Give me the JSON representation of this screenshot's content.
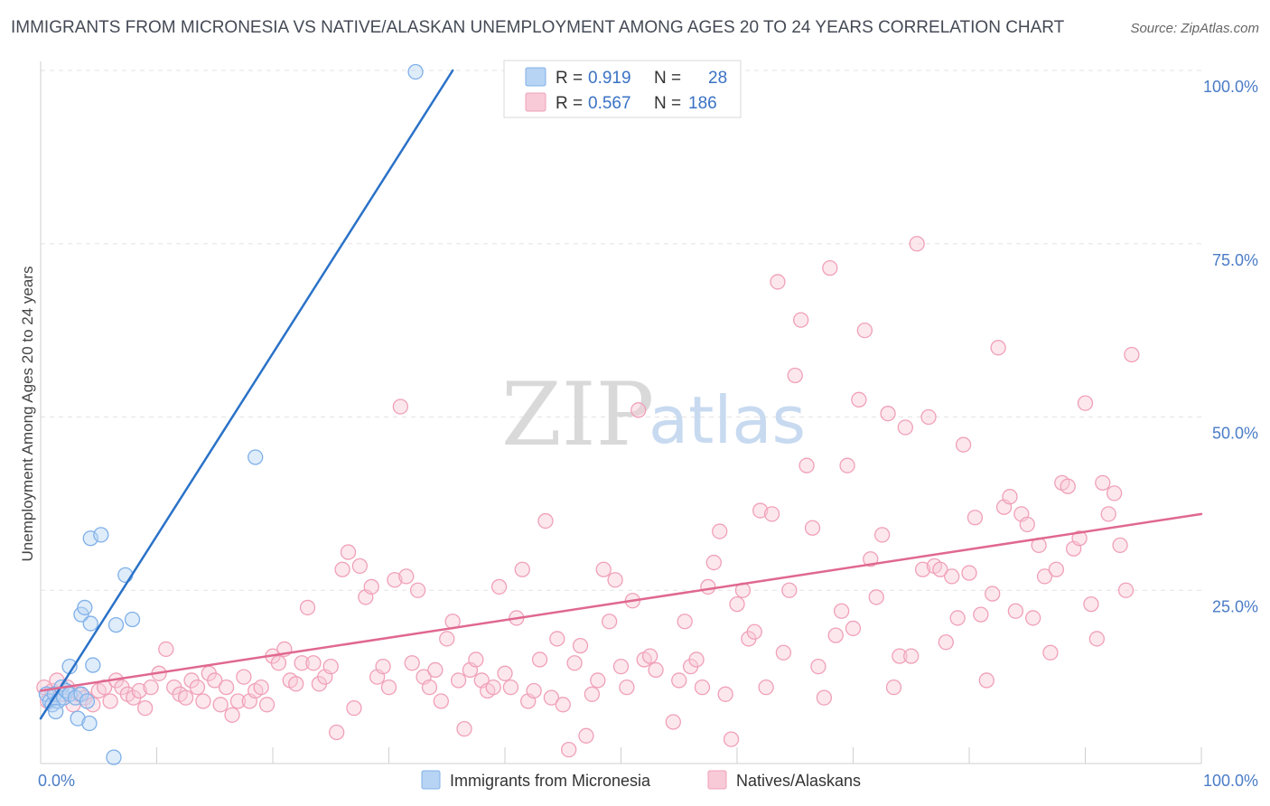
{
  "title": "IMMIGRANTS FROM MICRONESIA VS NATIVE/ALASKAN UNEMPLOYMENT AMONG AGES 20 TO 24 YEARS CORRELATION CHART",
  "source": "Source: ZipAtlas.com",
  "watermark": {
    "zip": "ZIP",
    "atlas": "atlas"
  },
  "chart_data": {
    "type": "scatter",
    "xlabel": "",
    "ylabel": "Unemployment Among Ages 20 to 24 years",
    "xlim": [
      0,
      100
    ],
    "ylim": [
      0,
      100
    ],
    "x_tick_labels": {
      "min": "0.0%",
      "max": "100.0%"
    },
    "y_ticks": [
      {
        "value": 25,
        "label": "25.0%"
      },
      {
        "value": 50,
        "label": "50.0%"
      },
      {
        "value": 75,
        "label": "75.0%"
      },
      {
        "value": 100,
        "label": "100.0%"
      }
    ],
    "legend": [
      {
        "r_label": "R =",
        "r_value": "0.919",
        "n_label": "N =",
        "n_value": "28"
      },
      {
        "r_label": "R =",
        "r_value": "0.567",
        "n_label": "N =",
        "n_value": "186"
      }
    ],
    "series": [
      {
        "name": "Immigrants from Micronesia",
        "color": "#7fb0e8",
        "fill": "#b8d4f4",
        "line_color": "#2a72c8",
        "trend": {
          "x": [
            0,
            35.5
          ],
          "y": [
            6.5,
            100
          ]
        },
        "points": [
          [
            0.5,
            10
          ],
          [
            0.8,
            9
          ],
          [
            1,
            8.5
          ],
          [
            1.2,
            10
          ],
          [
            1.5,
            9
          ],
          [
            1.8,
            11
          ],
          [
            2,
            9.5
          ],
          [
            2.2,
            10.5
          ],
          [
            2.5,
            10
          ],
          [
            3,
            9.5
          ],
          [
            1.3,
            7.5
          ],
          [
            2.5,
            14
          ],
          [
            3.2,
            6.5
          ],
          [
            3.5,
            10
          ],
          [
            4,
            9
          ],
          [
            3.5,
            21.5
          ],
          [
            4.5,
            14.2
          ],
          [
            3.8,
            22.5
          ],
          [
            4.2,
            5.8
          ],
          [
            4.3,
            32.5
          ],
          [
            5.2,
            33
          ],
          [
            4.3,
            20.2
          ],
          [
            6.5,
            20
          ],
          [
            7.3,
            27.2
          ],
          [
            7.9,
            20.8
          ],
          [
            6.3,
            0.9
          ],
          [
            18.5,
            44.2
          ],
          [
            32.3,
            99.8
          ]
        ]
      },
      {
        "name": "Natives/Alaskans",
        "color": "#f0a0b8",
        "fill": "#f8cad8",
        "line_color": "#e06890",
        "trend": {
          "x": [
            0,
            100
          ],
          "y": [
            10.5,
            36
          ]
        },
        "points": [
          [
            0.3,
            11
          ],
          [
            0.6,
            9
          ],
          [
            1,
            10.5
          ],
          [
            1.4,
            12
          ],
          [
            1.8,
            10
          ],
          [
            2.3,
            11
          ],
          [
            2.8,
            8.5
          ],
          [
            3.3,
            10
          ],
          [
            3.8,
            9.5
          ],
          [
            4.5,
            8.5
          ],
          [
            5,
            10.5
          ],
          [
            5.5,
            11
          ],
          [
            6,
            9
          ],
          [
            6.5,
            12
          ],
          [
            7,
            11
          ],
          [
            7.5,
            10
          ],
          [
            8,
            9.5
          ],
          [
            8.5,
            10.5
          ],
          [
            9,
            8
          ],
          [
            9.5,
            11
          ],
          [
            10.2,
            13
          ],
          [
            10.8,
            16.5
          ],
          [
            11.5,
            11
          ],
          [
            12,
            10
          ],
          [
            12.5,
            9.5
          ],
          [
            13,
            12
          ],
          [
            13.5,
            11
          ],
          [
            14,
            9
          ],
          [
            14.5,
            13
          ],
          [
            15,
            12
          ],
          [
            15.5,
            8.5
          ],
          [
            16,
            11
          ],
          [
            16.5,
            7
          ],
          [
            17,
            9
          ],
          [
            17.5,
            12.5
          ],
          [
            18,
            9
          ],
          [
            18.5,
            10.5
          ],
          [
            19,
            11
          ],
          [
            19.5,
            8.5
          ],
          [
            20,
            15.5
          ],
          [
            20.5,
            14.5
          ],
          [
            21,
            16.5
          ],
          [
            21.5,
            12
          ],
          [
            22,
            11.5
          ],
          [
            22.5,
            14.5
          ],
          [
            23,
            22.5
          ],
          [
            23.5,
            14.5
          ],
          [
            24,
            11.5
          ],
          [
            24.5,
            12.5
          ],
          [
            25,
            14
          ],
          [
            25.5,
            4.5
          ],
          [
            26,
            28
          ],
          [
            26.5,
            30.5
          ],
          [
            27,
            8
          ],
          [
            27.5,
            28.5
          ],
          [
            28,
            24
          ],
          [
            28.5,
            25.5
          ],
          [
            29,
            12.5
          ],
          [
            29.5,
            14
          ],
          [
            30,
            11
          ],
          [
            30.5,
            26.5
          ],
          [
            31,
            51.5
          ],
          [
            31.5,
            27
          ],
          [
            32,
            14.5
          ],
          [
            32.5,
            25
          ],
          [
            33,
            12.5
          ],
          [
            33.5,
            11
          ],
          [
            34,
            13.5
          ],
          [
            34.5,
            9
          ],
          [
            35,
            18
          ],
          [
            35.5,
            20.5
          ],
          [
            36,
            12
          ],
          [
            36.5,
            5
          ],
          [
            37,
            13.5
          ],
          [
            37.5,
            15
          ],
          [
            38,
            12
          ],
          [
            38.5,
            10.5
          ],
          [
            39,
            11
          ],
          [
            39.5,
            25.5
          ],
          [
            40,
            13
          ],
          [
            40.5,
            11
          ],
          [
            41,
            21
          ],
          [
            41.5,
            28
          ],
          [
            42,
            9
          ],
          [
            42.5,
            10.5
          ],
          [
            43,
            15
          ],
          [
            43.5,
            35
          ],
          [
            44,
            9.5
          ],
          [
            44.5,
            18
          ],
          [
            45,
            8.5
          ],
          [
            45.5,
            2
          ],
          [
            46,
            14.5
          ],
          [
            46.5,
            17
          ],
          [
            47,
            4
          ],
          [
            47.5,
            10
          ],
          [
            48,
            12
          ],
          [
            48.5,
            28
          ],
          [
            49,
            20.5
          ],
          [
            49.5,
            26.5
          ],
          [
            50,
            14
          ],
          [
            50.5,
            11
          ],
          [
            51,
            23.5
          ],
          [
            51.5,
            51
          ],
          [
            52,
            15
          ],
          [
            52.5,
            15.5
          ],
          [
            53,
            13.5
          ],
          [
            54.5,
            6
          ],
          [
            55,
            12
          ],
          [
            55.5,
            20.5
          ],
          [
            56,
            14
          ],
          [
            56.5,
            15
          ],
          [
            57,
            11
          ],
          [
            57.5,
            25.5
          ],
          [
            58,
            29
          ],
          [
            58.5,
            33.5
          ],
          [
            59,
            10
          ],
          [
            59.5,
            3.5
          ],
          [
            60,
            23
          ],
          [
            60.5,
            25
          ],
          [
            61,
            18
          ],
          [
            61.5,
            19
          ],
          [
            62,
            36.5
          ],
          [
            62.5,
            11
          ],
          [
            63,
            36
          ],
          [
            63.5,
            69.5
          ],
          [
            64,
            16
          ],
          [
            64.5,
            25
          ],
          [
            65,
            56
          ],
          [
            65.5,
            64
          ],
          [
            66,
            43
          ],
          [
            66.5,
            34
          ],
          [
            67,
            14
          ],
          [
            67.5,
            9.5
          ],
          [
            68,
            71.5
          ],
          [
            68.5,
            18.5
          ],
          [
            69,
            22
          ],
          [
            69.5,
            43
          ],
          [
            70,
            19.5
          ],
          [
            70.5,
            52.5
          ],
          [
            71,
            62.5
          ],
          [
            71.5,
            29.5
          ],
          [
            72,
            24
          ],
          [
            72.5,
            33
          ],
          [
            73,
            50.5
          ],
          [
            73.5,
            11
          ],
          [
            74,
            15.5
          ],
          [
            74.5,
            48.5
          ],
          [
            75,
            15.5
          ],
          [
            75.5,
            75
          ],
          [
            76,
            28
          ],
          [
            76.5,
            50
          ],
          [
            77,
            28.5
          ],
          [
            77.5,
            28
          ],
          [
            78,
            17.5
          ],
          [
            78.5,
            27
          ],
          [
            79,
            21
          ],
          [
            79.5,
            46
          ],
          [
            80,
            27.5
          ],
          [
            80.5,
            35.5
          ],
          [
            81,
            21.5
          ],
          [
            81.5,
            12
          ],
          [
            82,
            24.5
          ],
          [
            82.5,
            60
          ],
          [
            83,
            37
          ],
          [
            83.5,
            38.5
          ],
          [
            84,
            22
          ],
          [
            84.5,
            36
          ],
          [
            85,
            34.5
          ],
          [
            85.5,
            21
          ],
          [
            86,
            31.5
          ],
          [
            86.5,
            27
          ],
          [
            87,
            16
          ],
          [
            87.5,
            28
          ],
          [
            88,
            40.5
          ],
          [
            88.5,
            40
          ],
          [
            89,
            31
          ],
          [
            89.5,
            32.5
          ],
          [
            90,
            52
          ],
          [
            90.5,
            23
          ],
          [
            91,
            18
          ],
          [
            91.5,
            40.5
          ],
          [
            92,
            36
          ],
          [
            92.5,
            39
          ],
          [
            93,
            31.5
          ],
          [
            93.5,
            25
          ],
          [
            94,
            59
          ]
        ]
      }
    ],
    "bottom_legend": [
      "Immigrants from Micronesia",
      "Natives/Alaskans"
    ]
  }
}
